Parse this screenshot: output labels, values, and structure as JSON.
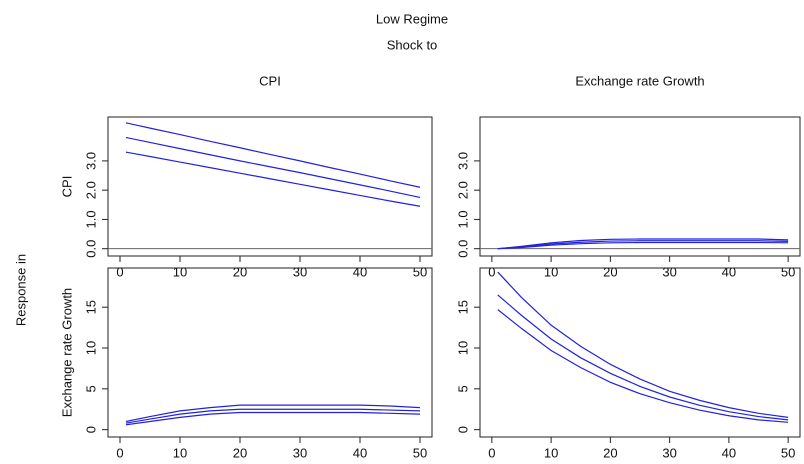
{
  "title": "Low Regime",
  "subtitle": "Shock to",
  "ylabel": "Response in",
  "chart_data": [
    {
      "type": "line",
      "title": "CPI",
      "ylabel": "CPI",
      "x": [
        1,
        5,
        10,
        15,
        20,
        25,
        30,
        35,
        40,
        45,
        50
      ],
      "series": [
        {
          "color": "#2222dd",
          "values": [
            4.3,
            4.12,
            3.9,
            3.67,
            3.45,
            3.22,
            3.0,
            2.77,
            2.55,
            2.32,
            2.1
          ]
        },
        {
          "color": "#2222dd",
          "values": [
            3.8,
            3.63,
            3.42,
            3.21,
            3.0,
            2.8,
            2.6,
            2.39,
            2.18,
            1.97,
            1.75
          ]
        },
        {
          "color": "#2222dd",
          "values": [
            3.3,
            3.15,
            2.96,
            2.77,
            2.58,
            2.39,
            2.2,
            2.01,
            1.82,
            1.63,
            1.45
          ]
        }
      ],
      "hline": 0,
      "xlim": [
        -2,
        52
      ],
      "xticks": [
        0,
        10,
        20,
        30,
        40,
        50
      ],
      "ylim": [
        -0.25,
        4.5
      ],
      "yticks": [
        {
          "value": 0,
          "label": "0.0"
        },
        {
          "value": 1,
          "label": "1.0"
        },
        {
          "value": 2,
          "label": "2.0"
        },
        {
          "value": 3,
          "label": "3.0"
        }
      ]
    },
    {
      "type": "line",
      "title": "Exchange rate Growth",
      "x": [
        1,
        5,
        10,
        15,
        20,
        25,
        30,
        35,
        40,
        45,
        50
      ],
      "series": [
        {
          "color": "#2222dd",
          "values": [
            0,
            0.08,
            0.2,
            0.28,
            0.32,
            0.33,
            0.33,
            0.33,
            0.33,
            0.33,
            0.3
          ]
        },
        {
          "color": "#2222dd",
          "values": [
            0,
            0.06,
            0.16,
            0.22,
            0.26,
            0.27,
            0.27,
            0.27,
            0.27,
            0.27,
            0.25
          ]
        },
        {
          "color": "#2222dd",
          "values": [
            0,
            0.04,
            0.12,
            0.17,
            0.2,
            0.21,
            0.21,
            0.21,
            0.21,
            0.21,
            0.2
          ]
        }
      ],
      "hline": 0,
      "xlim": [
        -2,
        52
      ],
      "xticks": [
        0,
        10,
        20,
        30,
        40,
        50
      ],
      "ylim": [
        -0.25,
        4.5
      ],
      "yticks": [
        {
          "value": 0,
          "label": "0.0"
        },
        {
          "value": 1,
          "label": "1.0"
        },
        {
          "value": 2,
          "label": "2.0"
        },
        {
          "value": 3,
          "label": "3.0"
        }
      ]
    },
    {
      "type": "line",
      "ylabel": "Exchange rate Growth",
      "x": [
        1,
        5,
        10,
        15,
        20,
        25,
        30,
        35,
        40,
        45,
        50
      ],
      "series": [
        {
          "color": "#2222dd",
          "values": [
            1.0,
            1.6,
            2.3,
            2.7,
            3.0,
            3.0,
            3.0,
            3.0,
            3.0,
            2.9,
            2.7
          ]
        },
        {
          "color": "#2222dd",
          "values": [
            0.8,
            1.3,
            1.9,
            2.3,
            2.5,
            2.5,
            2.5,
            2.5,
            2.5,
            2.4,
            2.3
          ]
        },
        {
          "color": "#2222dd",
          "values": [
            0.6,
            1.0,
            1.5,
            1.9,
            2.1,
            2.1,
            2.1,
            2.1,
            2.1,
            2.0,
            1.9
          ]
        }
      ],
      "xlim": [
        -2,
        52
      ],
      "xticks": [
        0,
        10,
        20,
        30,
        40,
        50
      ],
      "ylim": [
        -0.9,
        19.8
      ],
      "yticks": [
        0,
        5,
        10,
        15
      ]
    },
    {
      "type": "line",
      "x": [
        1,
        5,
        10,
        15,
        20,
        25,
        30,
        35,
        40,
        45,
        50
      ],
      "series": [
        {
          "color": "#2222dd",
          "values": [
            19.3,
            16.2,
            12.8,
            10.2,
            8.0,
            6.2,
            4.7,
            3.6,
            2.7,
            2.0,
            1.5
          ]
        },
        {
          "color": "#2222dd",
          "values": [
            16.5,
            14.0,
            11.1,
            8.8,
            6.9,
            5.3,
            4.0,
            3.0,
            2.2,
            1.6,
            1.2
          ]
        },
        {
          "color": "#2222dd",
          "values": [
            14.7,
            12.4,
            9.7,
            7.6,
            5.8,
            4.4,
            3.3,
            2.4,
            1.7,
            1.2,
            0.9
          ]
        }
      ],
      "xlim": [
        -2,
        52
      ],
      "xticks": [
        0,
        10,
        20,
        30,
        40,
        50
      ],
      "ylim": [
        -0.9,
        19.8
      ],
      "yticks": [
        0,
        5,
        10,
        15
      ]
    }
  ]
}
